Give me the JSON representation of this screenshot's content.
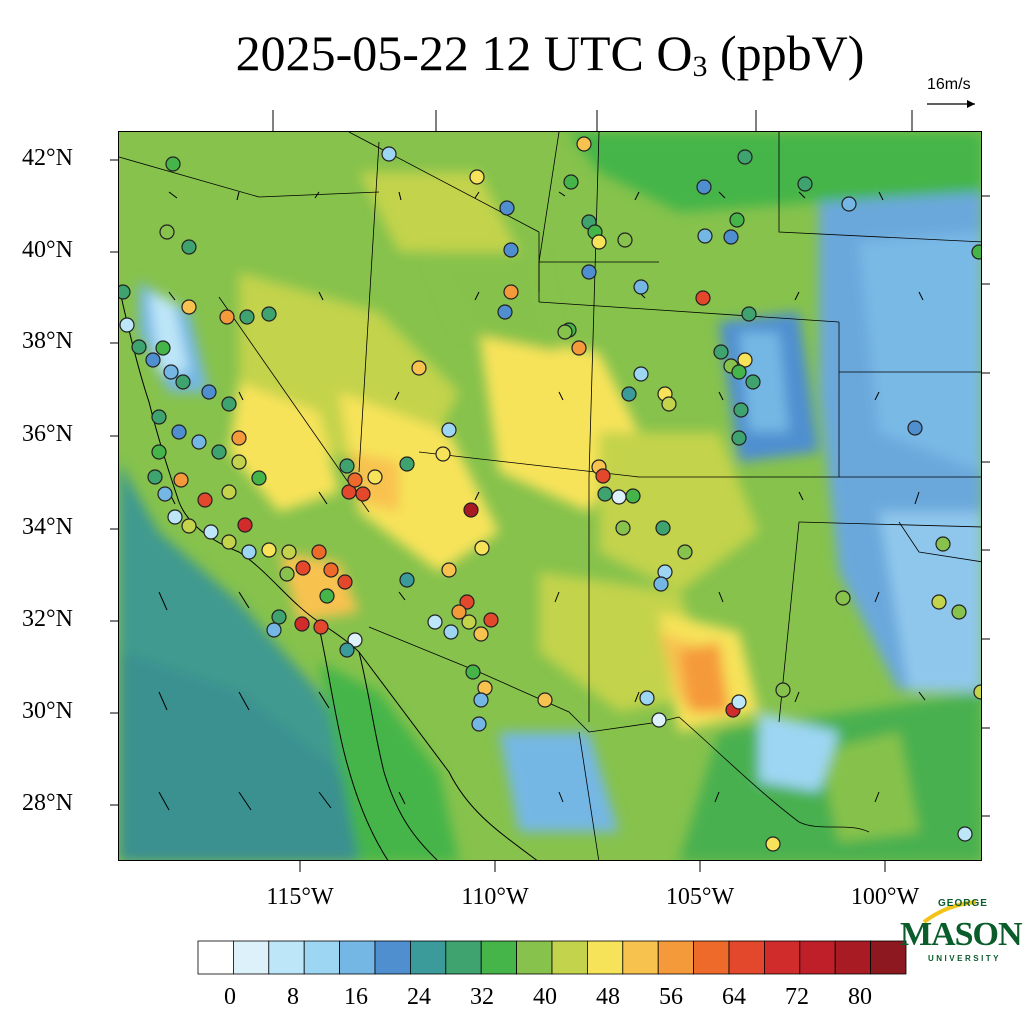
{
  "title": {
    "prefix": "2025-05-22 12 UTC O",
    "subscript": "3",
    "suffix": " (ppbV)"
  },
  "wind_reference": {
    "label": "16m/s"
  },
  "latitude_labels": [
    "42°N",
    "40°N",
    "38°N",
    "36°N",
    "34°N",
    "32°N",
    "30°N",
    "28°N"
  ],
  "longitude_labels": [
    "115°W",
    "110°W",
    "105°W",
    "100°W"
  ],
  "colorbar": {
    "tick_labels": [
      "0",
      "8",
      "16",
      "24",
      "32",
      "40",
      "48",
      "56",
      "64",
      "72",
      "80"
    ],
    "colors": [
      "#ffffff",
      "#ddf1fb",
      "#bde6f8",
      "#9dd6f3",
      "#74b7e4",
      "#4f8fd0",
      "#3b9a9a",
      "#3ea36f",
      "#45b549",
      "#86c24c",
      "#c3d34c",
      "#f7e35a",
      "#f8c24f",
      "#f59a3a",
      "#ee6a2a",
      "#e3472c",
      "#d12c2c",
      "#bf1f28",
      "#a81b22",
      "#8e1820"
    ]
  },
  "logo": {
    "line1": "GEORGE",
    "line2": "MASON",
    "line3": "UNIVERSITY"
  },
  "colors": {
    "frame": "#000000",
    "ocean": "#3f9a8f",
    "plains_low": "#6aa8dc",
    "mountain_high": "#f7e35a"
  }
}
